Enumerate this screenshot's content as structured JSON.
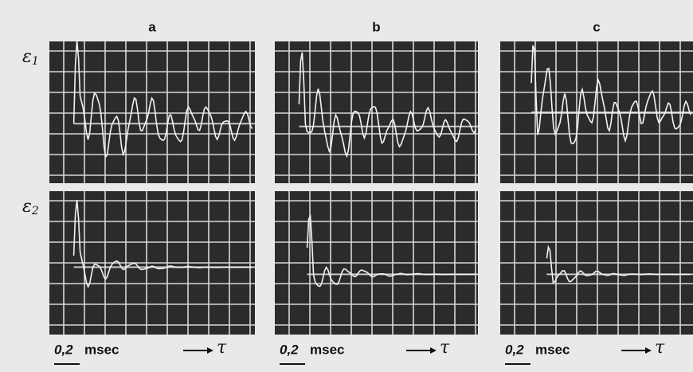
{
  "columns": [
    "a",
    "b",
    "c"
  ],
  "rows": [
    {
      "symbol": "ε",
      "index": "1"
    },
    {
      "symbol": "ε",
      "index": "2"
    }
  ],
  "scales": [
    {
      "value": "0,2",
      "unit": "msec",
      "axis": "τ"
    },
    {
      "value": "0,2",
      "unit": "msec",
      "axis": "τ"
    },
    {
      "value": "0,2",
      "unit": "msec",
      "axis": "τ"
    }
  ]
}
